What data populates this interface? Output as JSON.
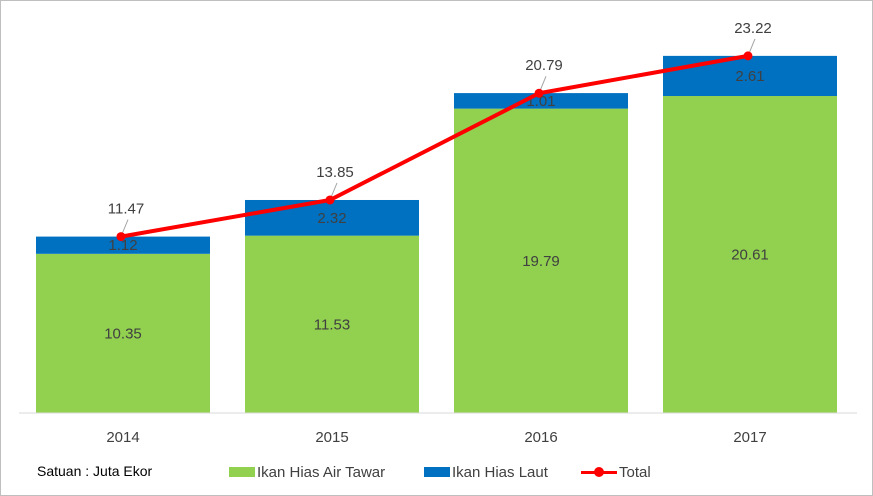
{
  "chart_data": {
    "type": "bar",
    "stacked": true,
    "categories": [
      "2014",
      "2015",
      "2016",
      "2017"
    ],
    "series": [
      {
        "name": "Ikan Hias Air Tawar",
        "kind": "bar",
        "color": "#92D050",
        "values": [
          10.35,
          11.53,
          19.79,
          20.61
        ]
      },
      {
        "name": "Ikan Hias Laut",
        "kind": "bar",
        "color": "#0070C0",
        "values": [
          1.12,
          2.32,
          1.01,
          2.61
        ]
      },
      {
        "name": "Total",
        "kind": "line",
        "color": "#FF0000",
        "values": [
          11.47,
          13.85,
          20.79,
          23.22
        ]
      }
    ],
    "ylim": [
      0,
      25
    ],
    "grid": false,
    "legend_position": "bottom",
    "note": "Satuan : Juta Ekor"
  }
}
